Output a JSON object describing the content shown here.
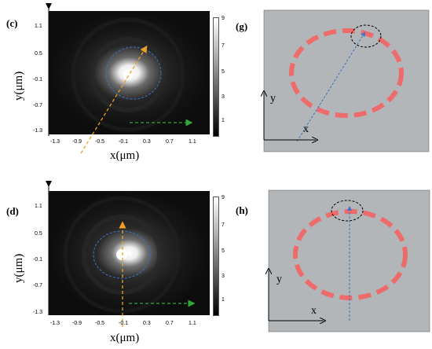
{
  "panels_left": [
    {
      "label": "(c)",
      "x_title": "x(μm)",
      "y_title": "y(μm)",
      "x_ticks": [
        "-1.3",
        "-0.9",
        "-0.5",
        "-0.1",
        "0.3",
        "0.7",
        "1.1"
      ],
      "y_ticks": [
        "1.1",
        "0.5",
        "-0.1",
        "-0.7",
        "-1.3"
      ],
      "colorbar_ticks": [
        "9",
        "7",
        "5",
        "3",
        "1"
      ]
    },
    {
      "label": "(d)",
      "x_title": "x(μm)",
      "y_title": "y(μm)",
      "x_ticks": [
        "-1.3",
        "-0.9",
        "-0.5",
        "-0.1",
        "0.3",
        "0.7",
        "1.1"
      ],
      "y_ticks": [
        "1.1",
        "0.5",
        "-0.1",
        "-0.7",
        "-1.3"
      ],
      "colorbar_ticks": [
        "9",
        "7",
        "5",
        "3",
        "1"
      ]
    }
  ],
  "panels_right": [
    {
      "label": "(g)",
      "x_axis": "x",
      "y_axis": "y"
    },
    {
      "label": "(h)",
      "x_axis": "x",
      "y_axis": "y"
    }
  ],
  "colors": {
    "ring": "#ee6b6b",
    "schematic_bg": "#b3b6b8",
    "orange_arrow": "#f0a020",
    "green_arrow": "#2fa83a",
    "blue_dashed": "#3a73c9"
  }
}
